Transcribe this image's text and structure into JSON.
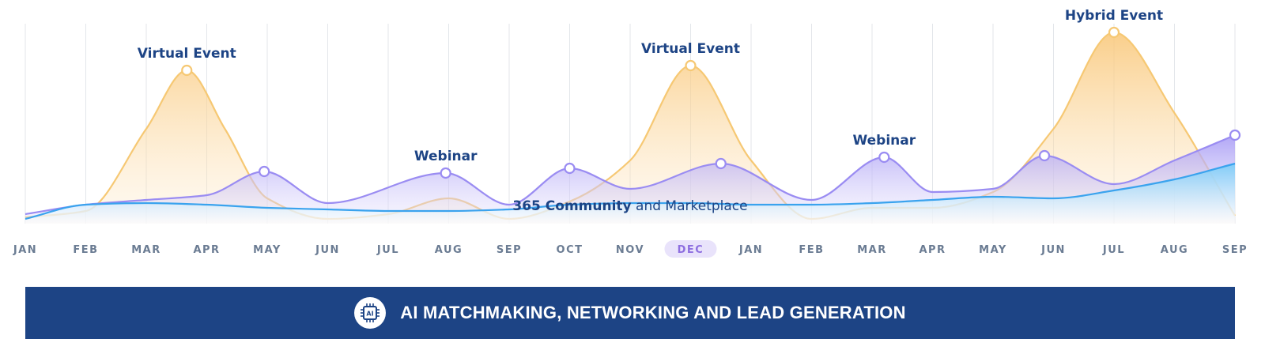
{
  "chart_data": {
    "type": "area",
    "categories": [
      "JAN",
      "FEB",
      "MAR",
      "APR",
      "MAY",
      "JUN",
      "JUL",
      "AUG",
      "SEP",
      "OCT",
      "NOV",
      "DEC",
      "JAN",
      "FEB",
      "MAR",
      "APR",
      "MAY",
      "JUN",
      "JUL",
      "AUG",
      "SEP"
    ],
    "highlighted_category": "DEC",
    "grid": true,
    "series": [
      {
        "role": "events",
        "color": "#f6c873",
        "points": [
          [
            0,
            4
          ],
          [
            1,
            8
          ],
          [
            2,
            60
          ],
          [
            2.67,
            97
          ],
          [
            3.3,
            60
          ],
          [
            4,
            16
          ],
          [
            5,
            3
          ],
          [
            6,
            6
          ],
          [
            7,
            16
          ],
          [
            8,
            3
          ],
          [
            9,
            14
          ],
          [
            10,
            40
          ],
          [
            11,
            100
          ],
          [
            12,
            40
          ],
          [
            13,
            3
          ],
          [
            14,
            10
          ],
          [
            15,
            10
          ],
          [
            16,
            20
          ],
          [
            17,
            60
          ],
          [
            18,
            121
          ],
          [
            19,
            70
          ],
          [
            20,
            5
          ]
        ]
      },
      {
        "role": "webinars",
        "color": "#9a8cf2",
        "points": [
          [
            0,
            6
          ],
          [
            1,
            12
          ],
          [
            2,
            15
          ],
          [
            3,
            18
          ],
          [
            3.95,
            33
          ],
          [
            5,
            13
          ],
          [
            6.95,
            32
          ],
          [
            8,
            12
          ],
          [
            9,
            35
          ],
          [
            10,
            22
          ],
          [
            11.5,
            38
          ],
          [
            13,
            15
          ],
          [
            14.2,
            42
          ],
          [
            15,
            20
          ],
          [
            16,
            22
          ],
          [
            16.85,
            43
          ],
          [
            18,
            25
          ],
          [
            19,
            40
          ],
          [
            20,
            56
          ]
        ],
        "markers": [
          3.95,
          6.95,
          9,
          11.5,
          14.2,
          16.85,
          20
        ]
      },
      {
        "role": "community",
        "color": "#3aa3ee",
        "points": [
          [
            0,
            3
          ],
          [
            1,
            12
          ],
          [
            2,
            13
          ],
          [
            3,
            12
          ],
          [
            4,
            10
          ],
          [
            5,
            9
          ],
          [
            6,
            8
          ],
          [
            7,
            8
          ],
          [
            8,
            9
          ],
          [
            9,
            12
          ],
          [
            10,
            13
          ],
          [
            11,
            13
          ],
          [
            12,
            12
          ],
          [
            13,
            12
          ],
          [
            14,
            13
          ],
          [
            15,
            15
          ],
          [
            16,
            17
          ],
          [
            17,
            16
          ],
          [
            18,
            21
          ],
          [
            19,
            28
          ],
          [
            20,
            38
          ]
        ]
      }
    ],
    "annotations": [
      {
        "text": "Virtual Event",
        "x": 2.67,
        "y": 97,
        "marker": true
      },
      {
        "text": "Webinar",
        "x": 6.95,
        "y": 32,
        "marker": false
      },
      {
        "text": "Virtual Event",
        "x": 11,
        "y": 100,
        "marker": true
      },
      {
        "text": "Webinar",
        "x": 14.2,
        "y": 42,
        "marker": false
      },
      {
        "text": "Hybrid Event",
        "x": 18,
        "y": 121,
        "marker": true
      }
    ],
    "band_label": {
      "strong": "365 Community",
      "rest": " and Marketplace"
    }
  },
  "banner": {
    "icon": "ai-chip-icon",
    "icon_text": "AI",
    "text": "AI MATCHMAKING, NETWORKING AND LEAD GENERATION",
    "background": "#1d4485"
  }
}
